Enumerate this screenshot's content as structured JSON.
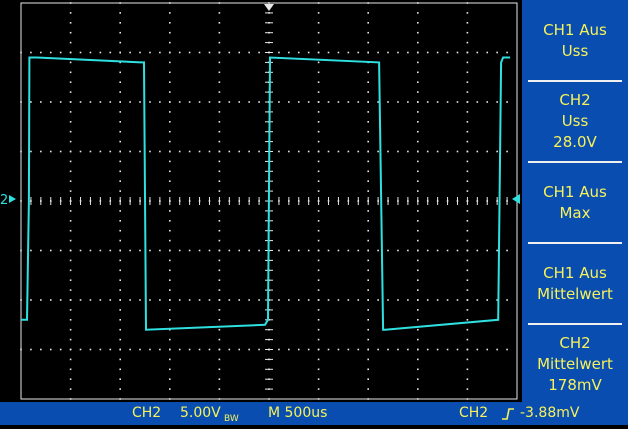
{
  "colors": {
    "background": "#000000",
    "trace": "#2fe0e0",
    "grid_dots": "#e8e8e8",
    "panel_bg": "#0a4db0",
    "panel_text": "#f7f25a",
    "separator": "#f0f0f0"
  },
  "trace": {
    "marker": "2",
    "description_icon": "trigger-level-arrow-icon"
  },
  "measurements": [
    {
      "lines": [
        "CH1 Aus",
        "Uss"
      ]
    },
    {
      "lines": [
        "CH2",
        "Uss",
        "28.0V"
      ]
    },
    {
      "lines": [
        "CH1 Aus",
        "Max"
      ]
    },
    {
      "lines": [
        "CH1 Aus",
        "Mittelwert"
      ]
    },
    {
      "lines": [
        "CH2",
        "Mittelwert",
        "178mV"
      ]
    }
  ],
  "status": {
    "channel": "CH2",
    "volts_div": "5.00V",
    "bw_suffix": "BW",
    "timebase": "M 500us",
    "trigger_channel": "CH2",
    "trigger_slope_icon": "rising-edge-icon",
    "trigger_level": "-3.88mV"
  },
  "chart_data": {
    "type": "line",
    "title": "",
    "xlabel": "",
    "ylabel": "",
    "x_divisions": 10,
    "y_divisions": 8,
    "volts_per_div": 5.0,
    "seconds_per_div": 0.0005,
    "series": [
      {
        "x": [
          0.0,
          0.12,
          0.16,
          0.17,
          0.32,
          2.42,
          2.48,
          2.52,
          4.92,
          4.98,
          5.02,
          7.22,
          7.3,
          7.34,
          9.62,
          9.68,
          9.72,
          9.86
        ],
        "y": [
          -2.4,
          -2.4,
          0.0,
          2.9,
          2.9,
          2.8,
          2.8,
          -2.6,
          -2.5,
          -2.4,
          2.9,
          2.8,
          -2.6,
          -2.6,
          -2.4,
          2.8,
          2.9,
          2.9
        ]
      }
    ],
    "grid": true,
    "xlim": [
      0,
      10
    ],
    "ylim": [
      -4,
      4
    ]
  }
}
